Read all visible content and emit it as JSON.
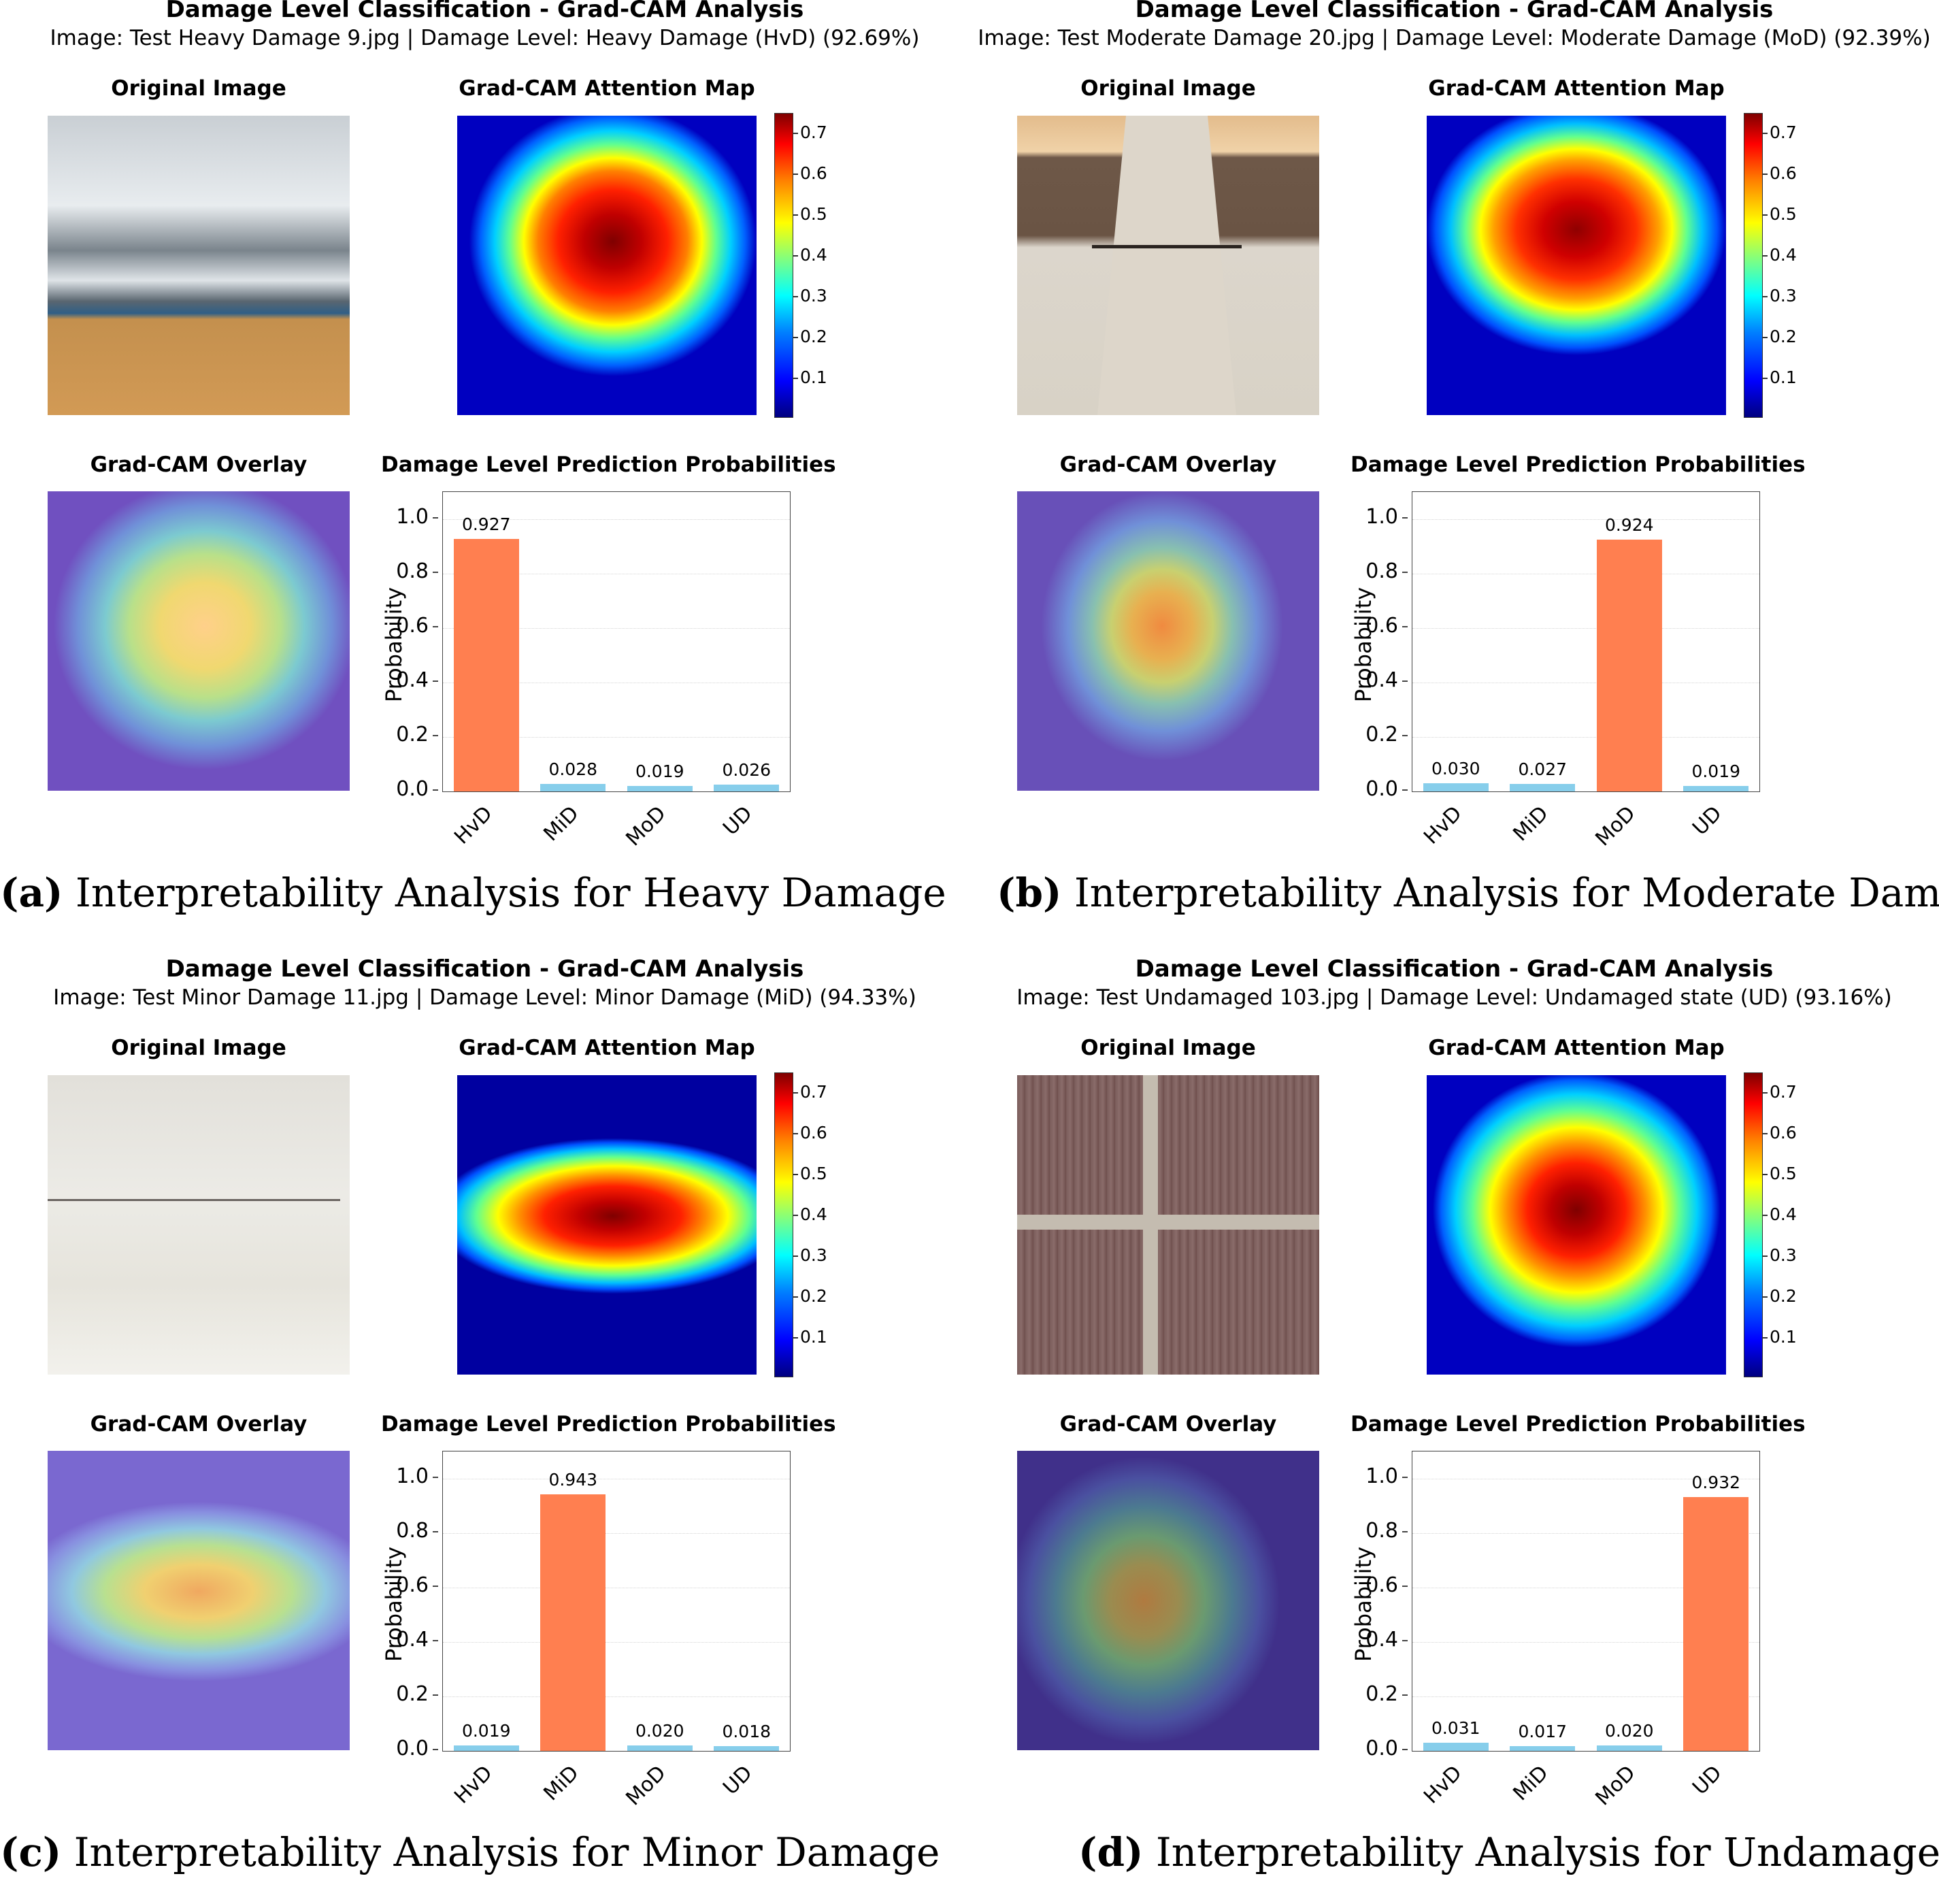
{
  "colors": {
    "highlight": "#ff7f50",
    "other": "#87ceeb"
  },
  "panels": [
    {
      "title": "Damage Level Classification - Grad-CAM Analysis",
      "subtitle": "Image: Test Heavy Damage 9.jpg | Damage Level: Heavy Damage (HvD) (92.69%)",
      "original_label": "Original Image",
      "gradcam_label": "Grad-CAM Attention Map",
      "overlay_label": "Grad-CAM Overlay",
      "probs_label": "Damage Level Prediction Probabilities",
      "caption_tag": "(a)",
      "caption_text": " Interpretability Analysis for Heavy Damage",
      "cbar_ticks": [
        "0.7",
        "0.6",
        "0.5",
        "0.4",
        "0.3",
        "0.2",
        "0.1"
      ],
      "heat_pos": "cx:0.52,cy:0.40",
      "icon": "cracked-wall-icon"
    },
    {
      "title": "Damage Level Classification - Grad-CAM Analysis",
      "subtitle": "Image: Test Moderate Damage 20.jpg | Damage Level: Moderate Damage (MoD) (92.39%)",
      "original_label": "Original Image",
      "gradcam_label": "Grad-CAM Attention Map",
      "overlay_label": "Grad-CAM Overlay",
      "probs_label": "Damage Level Prediction Probabilities",
      "caption_tag": "(b)",
      "caption_text": " Interpretability Analysis for Moderate Damage",
      "cbar_ticks": [
        "0.7",
        "0.6",
        "0.5",
        "0.4",
        "0.3",
        "0.2",
        "0.1"
      ],
      "icon": "column-icon"
    },
    {
      "title": "Damage Level Classification - Grad-CAM Analysis",
      "subtitle": "Image: Test Minor Damage 11.jpg | Damage Level: Minor Damage (MiD) (94.33%)",
      "original_label": "Original Image",
      "gradcam_label": "Grad-CAM Attention Map",
      "overlay_label": "Grad-CAM Overlay",
      "probs_label": "Damage Level Prediction Probabilities",
      "caption_tag": "(c)",
      "caption_text": " Interpretability Analysis for Minor Damage",
      "cbar_ticks": [
        "0.7",
        "0.6",
        "0.5",
        "0.4",
        "0.3",
        "0.2",
        "0.1"
      ],
      "icon": "plaster-wall-icon"
    },
    {
      "title": "Damage Level Classification - Grad-CAM Analysis",
      "subtitle": "Image: Test Undamaged 103.jpg | Damage Level: Undamaged state (UD) (93.16%)",
      "original_label": "Original Image",
      "gradcam_label": "Grad-CAM Attention Map",
      "overlay_label": "Grad-CAM Overlay",
      "probs_label": "Damage Level Prediction Probabilities",
      "caption_tag": "(d)",
      "caption_text": " Interpretability Analysis for Undamaged",
      "cbar_ticks": [
        "0.7",
        "0.6",
        "0.5",
        "0.4",
        "0.3",
        "0.2",
        "0.1"
      ],
      "icon": "brick-wall-icon"
    }
  ],
  "chart_data": [
    {
      "type": "bar",
      "title": "Damage Level Prediction Probabilities",
      "ylabel": "Probability",
      "xlabel": "",
      "categories": [
        "HvD",
        "MiD",
        "MoD",
        "UD"
      ],
      "values": [
        0.927,
        0.028,
        0.019,
        0.026
      ],
      "labels": [
        "0.927",
        "0.028",
        "0.019",
        "0.026"
      ],
      "highlight_index": 0,
      "yticks": [
        "0.0",
        "0.2",
        "0.4",
        "0.6",
        "0.8",
        "1.0"
      ],
      "ylim": [
        0,
        1.1
      ],
      "grid": true
    },
    {
      "type": "bar",
      "title": "Damage Level Prediction Probabilities",
      "ylabel": "Probability",
      "xlabel": "",
      "categories": [
        "HvD",
        "MiD",
        "MoD",
        "UD"
      ],
      "values": [
        0.03,
        0.027,
        0.924,
        0.019
      ],
      "labels": [
        "0.030",
        "0.027",
        "0.924",
        "0.019"
      ],
      "highlight_index": 2,
      "yticks": [
        "0.0",
        "0.2",
        "0.4",
        "0.6",
        "0.8",
        "1.0"
      ],
      "ylim": [
        0,
        1.1
      ],
      "grid": true
    },
    {
      "type": "bar",
      "title": "Damage Level Prediction Probabilities",
      "ylabel": "Probability",
      "xlabel": "",
      "categories": [
        "HvD",
        "MiD",
        "MoD",
        "UD"
      ],
      "values": [
        0.019,
        0.943,
        0.02,
        0.018
      ],
      "labels": [
        "0.019",
        "0.943",
        "0.020",
        "0.018"
      ],
      "highlight_index": 1,
      "yticks": [
        "0.0",
        "0.2",
        "0.4",
        "0.6",
        "0.8",
        "1.0"
      ],
      "ylim": [
        0,
        1.1
      ],
      "grid": true
    },
    {
      "type": "bar",
      "title": "Damage Level Prediction Probabilities",
      "ylabel": "Probability",
      "xlabel": "",
      "categories": [
        "HvD",
        "MiD",
        "MoD",
        "UD"
      ],
      "values": [
        0.031,
        0.017,
        0.02,
        0.932
      ],
      "labels": [
        "0.031",
        "0.017",
        "0.020",
        "0.932"
      ],
      "highlight_index": 3,
      "yticks": [
        "0.0",
        "0.2",
        "0.4",
        "0.6",
        "0.8",
        "1.0"
      ],
      "ylim": [
        0,
        1.1
      ],
      "grid": true
    }
  ]
}
